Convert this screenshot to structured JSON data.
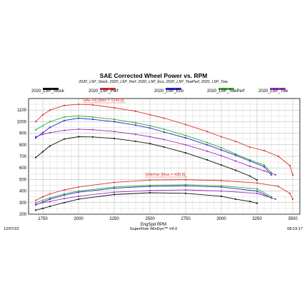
{
  "header": {
    "title": "SAE Corrected Wheel Power vs. RPM",
    "subtitle": "2020_L5P_Stock, 2020_L5P_Perf, 2020_L5P_Eco, 2020_L5P_TowPerf, 2020_L5P_Tow,"
  },
  "footer": {
    "date": "12/07/22",
    "software": "SuperFlow WinDyn™ V4.0",
    "time": "08:19:17"
  },
  "legend": [
    {
      "name": "2020_L5P_Stock",
      "color": "#111111"
    },
    {
      "name": "2020_L5P_Perf",
      "color": "#e03030"
    },
    {
      "name": "2020_L5P_Eco",
      "color": "#2828c8"
    },
    {
      "name": "2020_L5P_TowPerf",
      "color": "#30b030"
    },
    {
      "name": "2020_L5P_Tow",
      "color": "#a030c0"
    }
  ],
  "annotations": {
    "torque": "SAETrq [Max = 1149.8]",
    "power": "SAEPwr [Max = 498.8]"
  },
  "chart_data": {
    "type": "line",
    "title": "SAE Corrected Wheel Power vs. RPM",
    "xlabel": "EngSpd RPM",
    "ylabel": "",
    "xlim": [
      1650,
      3550
    ],
    "ylim": [
      200,
      1200
    ],
    "xticks": [
      1750,
      2000,
      2250,
      2500,
      2750,
      3000,
      3250,
      3500
    ],
    "yticks": [
      200,
      300,
      400,
      500,
      600,
      700,
      800,
      900,
      1000,
      1100
    ],
    "grid": true,
    "legend_position": "top",
    "series": [
      {
        "name": "2020_L5P_Stock",
        "quantity": "SAETrq",
        "color": "#111111",
        "x": [
          1700,
          1750,
          1800,
          1900,
          2000,
          2100,
          2250,
          2400,
          2500,
          2600,
          2750,
          2900,
          3000,
          3100,
          3200,
          3250
        ],
        "y": [
          690,
          740,
          790,
          850,
          870,
          868,
          855,
          830,
          810,
          780,
          730,
          670,
          625,
          580,
          530,
          495
        ]
      },
      {
        "name": "2020_L5P_Perf",
        "quantity": "SAETrq",
        "color": "#e03030",
        "x": [
          1700,
          1750,
          1800,
          1900,
          2000,
          2100,
          2250,
          2400,
          2500,
          2600,
          2750,
          2900,
          3000,
          3100,
          3200,
          3300,
          3400,
          3480,
          3500
        ],
        "y": [
          1000,
          1060,
          1100,
          1140,
          1150,
          1145,
          1120,
          1090,
          1060,
          1030,
          975,
          915,
          870,
          830,
          780,
          750,
          700,
          620,
          540
        ]
      },
      {
        "name": "2020_L5P_Eco",
        "quantity": "SAETrq",
        "color": "#2828c8",
        "x": [
          1700,
          1750,
          1800,
          1900,
          2000,
          2100,
          2250,
          2400,
          2500,
          2600,
          2750,
          2900,
          3000,
          3100,
          3200,
          3300,
          3350
        ],
        "y": [
          860,
          905,
          950,
          1010,
          1030,
          1020,
          1000,
          970,
          945,
          910,
          860,
          800,
          755,
          710,
          660,
          610,
          540
        ]
      },
      {
        "name": "2020_L5P_TowPerf",
        "quantity": "SAETrq",
        "color": "#30b030",
        "x": [
          1700,
          1750,
          1800,
          1900,
          2000,
          2100,
          2250,
          2400,
          2500,
          2600,
          2750,
          2900,
          3000,
          3100,
          3200,
          3300,
          3350
        ],
        "y": [
          930,
          965,
          1000,
          1040,
          1050,
          1040,
          1020,
          990,
          965,
          935,
          880,
          820,
          775,
          720,
          670,
          625,
          560
        ]
      },
      {
        "name": "2020_L5P_Tow",
        "quantity": "SAETrq",
        "color": "#a030c0",
        "x": [
          1700,
          1750,
          1800,
          1900,
          2000,
          2100,
          2250,
          2400,
          2500,
          2600,
          2750,
          2900,
          3000,
          3100,
          3200,
          3300,
          3380
        ],
        "y": [
          870,
          890,
          905,
          925,
          935,
          930,
          915,
          890,
          870,
          845,
          800,
          745,
          705,
          660,
          615,
          575,
          540
        ]
      },
      {
        "name": "2020_L5P_Stock",
        "quantity": "SAEPwr",
        "color": "#111111",
        "x": [
          1700,
          1750,
          1800,
          1900,
          2000,
          2250,
          2500,
          2750,
          3000,
          3100,
          3200,
          3250
        ],
        "y": [
          235,
          250,
          268,
          300,
          330,
          370,
          385,
          380,
          355,
          330,
          310,
          295
        ]
      },
      {
        "name": "2020_L5P_Perf",
        "quantity": "SAEPwr",
        "color": "#e03030",
        "x": [
          1700,
          1750,
          1800,
          1900,
          2000,
          2250,
          2500,
          2750,
          3000,
          3250,
          3400,
          3480,
          3500
        ],
        "y": [
          320,
          350,
          375,
          410,
          435,
          475,
          495,
          498,
          490,
          470,
          440,
          380,
          330
        ]
      },
      {
        "name": "2020_L5P_Eco",
        "quantity": "SAEPwr",
        "color": "#2828c8",
        "x": [
          1700,
          1750,
          1800,
          1900,
          2000,
          2250,
          2500,
          2750,
          3000,
          3250,
          3350
        ],
        "y": [
          280,
          305,
          330,
          365,
          390,
          425,
          440,
          445,
          435,
          400,
          340
        ]
      },
      {
        "name": "2020_L5P_TowPerf",
        "quantity": "SAEPwr",
        "color": "#30b030",
        "x": [
          1700,
          1750,
          1800,
          1900,
          2000,
          2250,
          2500,
          2750,
          3000,
          3250,
          3350
        ],
        "y": [
          300,
          320,
          340,
          375,
          400,
          435,
          450,
          455,
          445,
          420,
          350
        ]
      },
      {
        "name": "2020_L5P_Tow",
        "quantity": "SAEPwr",
        "color": "#a030c0",
        "x": [
          1700,
          1750,
          1800,
          1900,
          2000,
          2250,
          2500,
          2750,
          3000,
          3250,
          3380
        ],
        "y": [
          285,
          300,
          310,
          335,
          355,
          390,
          405,
          410,
          400,
          380,
          330
        ]
      }
    ]
  }
}
